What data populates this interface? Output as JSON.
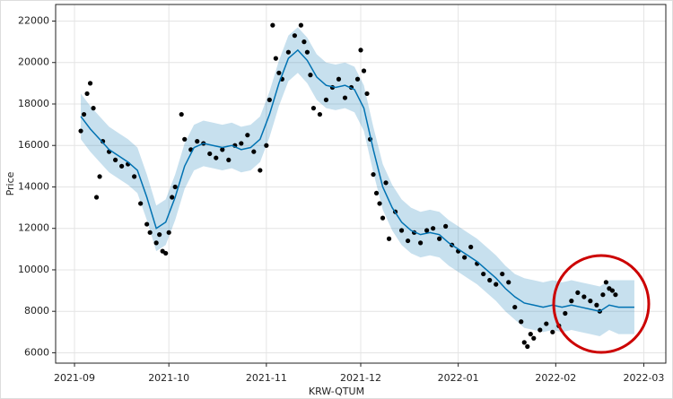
{
  "chart_data": {
    "type": "forecast",
    "x_label": "KRW-QTUM",
    "y_label": "Price",
    "xlim": [
      "2021-08-26",
      "2022-03-08"
    ],
    "ylim": [
      5500,
      22800
    ],
    "xticks": [
      {
        "value": "2021-09-01",
        "label": "2021-09"
      },
      {
        "value": "2021-10-01",
        "label": "2021-10"
      },
      {
        "value": "2021-11-01",
        "label": "2021-11"
      },
      {
        "value": "2021-12-01",
        "label": "2021-12"
      },
      {
        "value": "2022-01-01",
        "label": "2022-01"
      },
      {
        "value": "2022-02-01",
        "label": "2022-02"
      },
      {
        "value": "2022-03-01",
        "label": "2022-03"
      }
    ],
    "yticks": [
      6000,
      8000,
      10000,
      12000,
      14000,
      16000,
      18000,
      20000,
      22000
    ],
    "grid": true,
    "point_color": "#000000",
    "line_color": "#0072b2",
    "band_color": "#0072b2",
    "points": {
      "x": [
        "2021-09-03",
        "2021-09-04",
        "2021-09-05",
        "2021-09-06",
        "2021-09-07",
        "2021-09-08",
        "2021-09-09",
        "2021-09-10",
        "2021-09-12",
        "2021-09-14",
        "2021-09-16",
        "2021-09-18",
        "2021-09-20",
        "2021-09-22",
        "2021-09-24",
        "2021-09-25",
        "2021-09-27",
        "2021-09-28",
        "2021-09-29",
        "2021-09-30",
        "2021-10-01",
        "2021-10-02",
        "2021-10-03",
        "2021-10-05",
        "2021-10-06",
        "2021-10-08",
        "2021-10-10",
        "2021-10-12",
        "2021-10-14",
        "2021-10-16",
        "2021-10-18",
        "2021-10-20",
        "2021-10-22",
        "2021-10-24",
        "2021-10-26",
        "2021-10-28",
        "2021-10-30",
        "2021-11-01",
        "2021-11-02",
        "2021-11-03",
        "2021-11-04",
        "2021-11-05",
        "2021-11-06",
        "2021-11-08",
        "2021-11-10",
        "2021-11-12",
        "2021-11-13",
        "2021-11-14",
        "2021-11-15",
        "2021-11-16",
        "2021-11-18",
        "2021-11-20",
        "2021-11-22",
        "2021-11-24",
        "2021-11-26",
        "2021-11-28",
        "2021-11-30",
        "2021-12-01",
        "2021-12-02",
        "2021-12-03",
        "2021-12-04",
        "2021-12-05",
        "2021-12-06",
        "2021-12-07",
        "2021-12-08",
        "2021-12-09",
        "2021-12-10",
        "2021-12-12",
        "2021-12-14",
        "2021-12-16",
        "2021-12-18",
        "2021-12-20",
        "2021-12-22",
        "2021-12-24",
        "2021-12-26",
        "2021-12-28",
        "2021-12-30",
        "2022-01-01",
        "2022-01-03",
        "2022-01-05",
        "2022-01-07",
        "2022-01-09",
        "2022-01-11",
        "2022-01-13",
        "2022-01-15",
        "2022-01-17",
        "2022-01-19",
        "2022-01-21",
        "2022-01-22",
        "2022-01-23",
        "2022-01-24",
        "2022-01-25",
        "2022-01-27",
        "2022-01-29",
        "2022-01-31",
        "2022-02-02",
        "2022-02-04",
        "2022-02-06",
        "2022-02-08",
        "2022-02-10",
        "2022-02-12",
        "2022-02-14",
        "2022-02-15",
        "2022-02-16",
        "2022-02-17",
        "2022-02-18",
        "2022-02-19",
        "2022-02-20"
      ],
      "values": [
        16700,
        17500,
        18500,
        19000,
        17800,
        13500,
        14500,
        16200,
        15700,
        15300,
        15000,
        15100,
        14500,
        13200,
        12200,
        11800,
        11300,
        11700,
        10900,
        10800,
        11800,
        13500,
        14000,
        17500,
        16300,
        15800,
        16200,
        16100,
        15600,
        15400,
        15800,
        15300,
        16000,
        16100,
        16500,
        15700,
        14800,
        16000,
        18200,
        21800,
        20200,
        19500,
        19200,
        20500,
        21300,
        21800,
        21000,
        20500,
        19400,
        17800,
        17500,
        18200,
        18800,
        19200,
        18300,
        18800,
        19200,
        20600,
        19600,
        18500,
        16300,
        14600,
        13700,
        13200,
        12500,
        14200,
        11500,
        12800,
        11900,
        11400,
        11800,
        11300,
        11900,
        12000,
        11500,
        12100,
        11200,
        10900,
        10600,
        11100,
        10300,
        9800,
        9500,
        9300,
        9800,
        9400,
        8200,
        7500,
        6500,
        6300,
        6900,
        6700,
        7100,
        7400,
        7000,
        7300,
        7900,
        8500,
        8900,
        8700,
        8500,
        8300,
        8000,
        8800,
        9400,
        9100,
        9000,
        8800
      ]
    },
    "forecast": {
      "x": [
        "2021-09-03",
        "2021-09-06",
        "2021-09-09",
        "2021-09-12",
        "2021-09-15",
        "2021-09-18",
        "2021-09-21",
        "2021-09-24",
        "2021-09-27",
        "2021-09-30",
        "2021-10-03",
        "2021-10-06",
        "2021-10-09",
        "2021-10-12",
        "2021-10-15",
        "2021-10-18",
        "2021-10-21",
        "2021-10-24",
        "2021-10-27",
        "2021-10-30",
        "2021-11-02",
        "2021-11-05",
        "2021-11-08",
        "2021-11-11",
        "2021-11-14",
        "2021-11-17",
        "2021-11-20",
        "2021-11-23",
        "2021-11-26",
        "2021-11-29",
        "2021-12-02",
        "2021-12-05",
        "2021-12-08",
        "2021-12-11",
        "2021-12-14",
        "2021-12-17",
        "2021-12-20",
        "2021-12-23",
        "2021-12-26",
        "2021-12-29",
        "2022-01-01",
        "2022-01-04",
        "2022-01-07",
        "2022-01-10",
        "2022-01-13",
        "2022-01-16",
        "2022-01-19",
        "2022-01-22",
        "2022-01-25",
        "2022-01-28",
        "2022-01-31",
        "2022-02-03",
        "2022-02-06",
        "2022-02-09",
        "2022-02-12",
        "2022-02-15",
        "2022-02-18",
        "2022-02-21",
        "2022-02-24",
        "2022-02-26"
      ],
      "values": [
        17400,
        16800,
        16300,
        15800,
        15500,
        15200,
        14800,
        13500,
        12000,
        12300,
        13500,
        15000,
        15900,
        16100,
        16000,
        15900,
        16000,
        15800,
        15900,
        16300,
        17500,
        19000,
        20200,
        20600,
        20100,
        19300,
        18900,
        18800,
        18900,
        18700,
        17800,
        15800,
        14000,
        13000,
        12300,
        11900,
        11700,
        11800,
        11700,
        11300,
        11000,
        10700,
        10400,
        10000,
        9600,
        9100,
        8700,
        8400,
        8300,
        8200,
        8300,
        8200,
        8300,
        8200,
        8100,
        8000,
        8300,
        8200,
        8200,
        8200
      ],
      "lower": [
        16300,
        15700,
        15200,
        14700,
        14400,
        14100,
        13700,
        12400,
        10900,
        11200,
        12400,
        13900,
        14800,
        15000,
        14900,
        14800,
        14900,
        14700,
        14800,
        15200,
        16400,
        17900,
        19100,
        19500,
        19000,
        18200,
        17800,
        17700,
        17800,
        17600,
        16700,
        14700,
        12900,
        11900,
        11200,
        10800,
        10600,
        10700,
        10600,
        10200,
        9900,
        9600,
        9300,
        8900,
        8500,
        8000,
        7600,
        7200,
        7100,
        7000,
        7100,
        7000,
        7100,
        7000,
        6900,
        6800,
        7100,
        6900,
        6900,
        6900
      ],
      "upper": [
        18500,
        17900,
        17400,
        16900,
        16600,
        16300,
        15900,
        14600,
        13100,
        13400,
        14600,
        16100,
        17000,
        17200,
        17100,
        17000,
        17100,
        16900,
        17000,
        17400,
        18600,
        20100,
        21300,
        21700,
        21200,
        20400,
        20000,
        19900,
        20000,
        19800,
        18900,
        16900,
        15100,
        14100,
        13400,
        13000,
        12800,
        12900,
        12800,
        12400,
        12100,
        11800,
        11500,
        11100,
        10700,
        10200,
        9800,
        9600,
        9500,
        9400,
        9500,
        9400,
        9500,
        9400,
        9300,
        9200,
        9500,
        9500,
        9500,
        9500
      ]
    }
  }
}
